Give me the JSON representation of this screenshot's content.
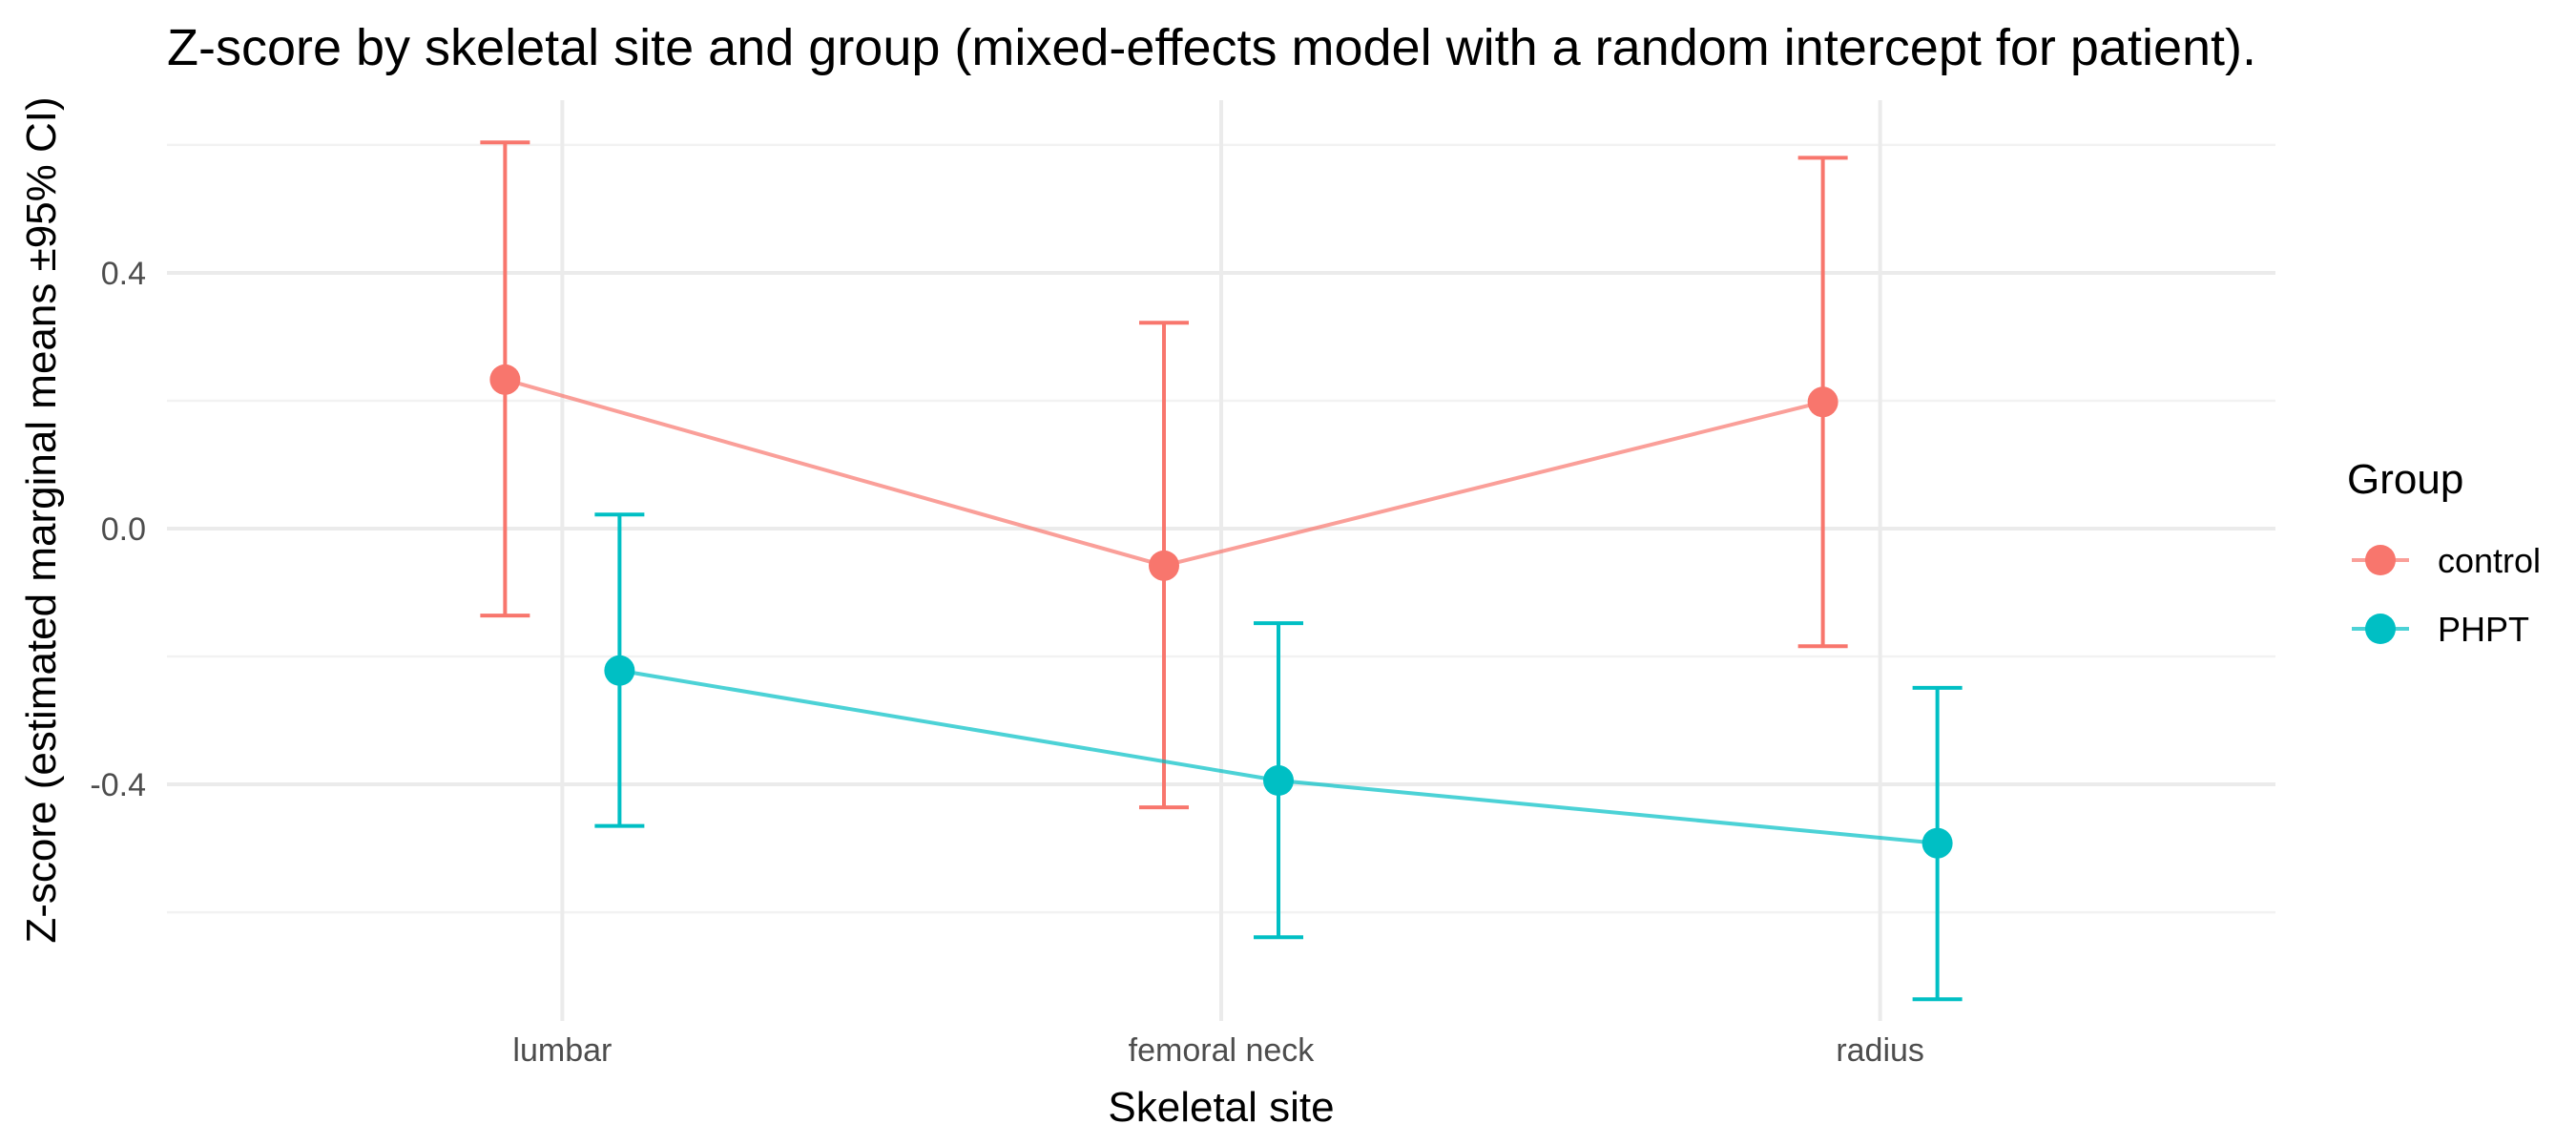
{
  "chart_data": {
    "type": "line",
    "title": "Z-score by skeletal site and group (mixed-effects model with a random intercept for patient).",
    "xlabel": "Skeletal site",
    "ylabel": "Z-score (estimated marginal means ±95% CI)",
    "categories": [
      "lumbar",
      "femoral neck",
      "radius"
    ],
    "ylim": [
      -0.77,
      0.67
    ],
    "yticks": [
      -0.4,
      0.0,
      0.4
    ],
    "ytick_labels": [
      "-0.4",
      "0.0",
      "0.4"
    ],
    "grid": true,
    "legend": {
      "title": "Group",
      "placement": "right"
    },
    "series": [
      {
        "name": "control",
        "color": "#F8766D",
        "values": [
          0.233,
          -0.058,
          0.198
        ],
        "ci_low": [
          -0.136,
          -0.436,
          -0.184
        ],
        "ci_high": [
          0.604,
          0.322,
          0.58
        ]
      },
      {
        "name": "PHPT",
        "color": "#00BFC4",
        "values": [
          -0.222,
          -0.394,
          -0.492
        ],
        "ci_low": [
          -0.465,
          -0.639,
          -0.736
        ],
        "ci_high": [
          0.022,
          -0.148,
          -0.249
        ]
      }
    ]
  }
}
